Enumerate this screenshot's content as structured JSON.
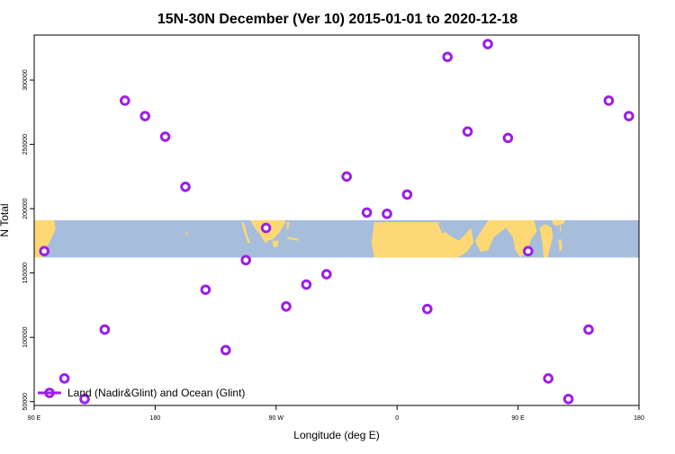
{
  "chart_data": {
    "type": "scatter",
    "title": "15N-30N December (Ver 10)   2015-01-01 to 2020-12-18",
    "xlabel": "Longitude (deg E)",
    "ylabel": "N Total",
    "xlim": [
      90,
      540
    ],
    "ylim": [
      47000,
      335000
    ],
    "grid": false,
    "legend_placement": "bottom-left",
    "x_ticks": [
      {
        "value": 90,
        "label": "90 E"
      },
      {
        "value": 180,
        "label": "180"
      },
      {
        "value": 270,
        "label": "90 W"
      },
      {
        "value": 360,
        "label": "0"
      },
      {
        "value": 450,
        "label": "90 E"
      },
      {
        "value": 540,
        "label": "180"
      }
    ],
    "y_ticks": [
      {
        "value": 50000,
        "label": "50000"
      },
      {
        "value": 100000,
        "label": "100000"
      },
      {
        "value": 150000,
        "label": "150000"
      },
      {
        "value": 200000,
        "label": "200000"
      },
      {
        "value": 250000,
        "label": "250000"
      },
      {
        "value": 300000,
        "label": "300000"
      }
    ],
    "map_band": {
      "lat_from": 15,
      "lat_to": 30,
      "y_from": 162000,
      "y_to": 191000,
      "ocean_color": "#a6bddb",
      "land_color": "#fdd874"
    },
    "series": [
      {
        "name": "Land (Nadir&Glint) and Ocean (Glint)",
        "color": "#9b1fe8",
        "points": [
          {
            "x": 97.5,
            "y": 167000
          },
          {
            "x": 112.5,
            "y": 68000
          },
          {
            "x": 127.5,
            "y": 52000
          },
          {
            "x": 142.5,
            "y": 106000
          },
          {
            "x": 157.5,
            "y": 284000
          },
          {
            "x": 172.5,
            "y": 272000
          },
          {
            "x": 187.5,
            "y": 256000
          },
          {
            "x": 202.5,
            "y": 217000
          },
          {
            "x": 217.5,
            "y": 137000
          },
          {
            "x": 232.5,
            "y": 90000
          },
          {
            "x": 247.5,
            "y": 160000
          },
          {
            "x": 262.5,
            "y": 185000
          },
          {
            "x": 277.5,
            "y": 124000
          },
          {
            "x": 292.5,
            "y": 141000
          },
          {
            "x": 307.5,
            "y": 149000
          },
          {
            "x": 322.5,
            "y": 225000
          },
          {
            "x": 337.5,
            "y": 197000
          },
          {
            "x": 352.5,
            "y": 196000
          },
          {
            "x": 367.5,
            "y": 211000
          },
          {
            "x": 382.5,
            "y": 122000
          },
          {
            "x": 397.5,
            "y": 318000
          },
          {
            "x": 412.5,
            "y": 260000
          },
          {
            "x": 427.5,
            "y": 328000
          },
          {
            "x": 442.5,
            "y": 255000
          },
          {
            "x": 457.5,
            "y": 167000
          },
          {
            "x": 472.5,
            "y": 68000
          },
          {
            "x": 487.5,
            "y": 52000
          },
          {
            "x": 502.5,
            "y": 106000
          },
          {
            "x": 517.5,
            "y": 284000
          },
          {
            "x": 532.5,
            "y": 272000
          }
        ]
      }
    ]
  }
}
